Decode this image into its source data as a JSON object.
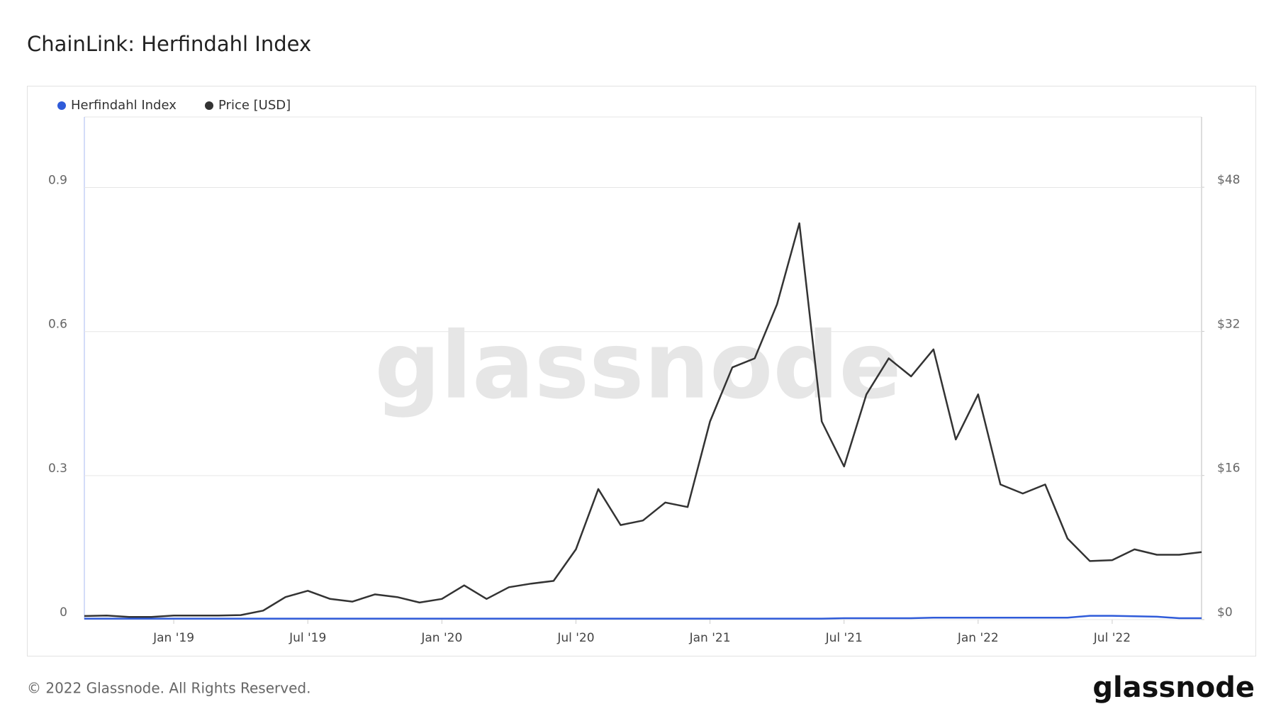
{
  "chart_data": {
    "type": "line",
    "title": "ChainLink: Herfindahl Index",
    "x": [
      "2018-09",
      "2018-10",
      "2018-11",
      "2018-12",
      "2019-01",
      "2019-02",
      "2019-03",
      "2019-04",
      "2019-05",
      "2019-06",
      "2019-07",
      "2019-08",
      "2019-09",
      "2019-10",
      "2019-11",
      "2019-12",
      "2020-01",
      "2020-02",
      "2020-03",
      "2020-04",
      "2020-05",
      "2020-06",
      "2020-07",
      "2020-08",
      "2020-09",
      "2020-10",
      "2020-11",
      "2020-12",
      "2021-01",
      "2021-02",
      "2021-03",
      "2021-04",
      "2021-05",
      "2021-06",
      "2021-07",
      "2021-08",
      "2021-09",
      "2021-10",
      "2021-11",
      "2021-12",
      "2022-01",
      "2022-02",
      "2022-03",
      "2022-04",
      "2022-05",
      "2022-06",
      "2022-07",
      "2022-08",
      "2022-09",
      "2022-10",
      "2022-11"
    ],
    "series": [
      {
        "name": "Herfindahl Index",
        "color": "#2f5bd9",
        "axis": "y",
        "values": [
          0.002,
          0.002,
          0.002,
          0.002,
          0.002,
          0.002,
          0.002,
          0.002,
          0.002,
          0.002,
          0.002,
          0.002,
          0.002,
          0.002,
          0.002,
          0.002,
          0.002,
          0.002,
          0.002,
          0.002,
          0.002,
          0.002,
          0.002,
          0.002,
          0.002,
          0.002,
          0.002,
          0.002,
          0.002,
          0.002,
          0.002,
          0.002,
          0.002,
          0.002,
          0.003,
          0.003,
          0.003,
          0.003,
          0.004,
          0.004,
          0.004,
          0.004,
          0.004,
          0.004,
          0.004,
          0.008,
          0.008,
          0.007,
          0.006,
          0.003,
          0.003
        ]
      },
      {
        "name": "Price [USD]",
        "color": "#333333",
        "axis": "y2",
        "values": [
          0.4,
          0.45,
          0.3,
          0.3,
          0.45,
          0.45,
          0.45,
          0.5,
          1.0,
          2.5,
          3.2,
          2.3,
          2.0,
          2.8,
          2.5,
          1.9,
          2.3,
          3.8,
          2.3,
          3.6,
          4.0,
          4.3,
          7.8,
          14.5,
          10.5,
          11,
          13,
          12.5,
          22,
          28,
          29,
          35,
          44,
          22,
          17,
          25,
          29,
          27,
          30,
          20,
          25,
          15,
          14,
          15,
          9,
          6.5,
          6.6,
          7.8,
          7.2,
          7.2,
          7.5
        ]
      }
    ],
    "xlim": [
      "2018-09",
      "2022-11"
    ],
    "xticks": [
      {
        "value": "2019-01",
        "label": "Jan '19"
      },
      {
        "value": "2019-07",
        "label": "Jul '19"
      },
      {
        "value": "2020-01",
        "label": "Jan '20"
      },
      {
        "value": "2020-07",
        "label": "Jul '20"
      },
      {
        "value": "2021-01",
        "label": "Jan '21"
      },
      {
        "value": "2021-07",
        "label": "Jul '21"
      },
      {
        "value": "2022-01",
        "label": "Jan '22"
      },
      {
        "value": "2022-07",
        "label": "Jul '22"
      }
    ],
    "ylim": [
      0,
      1.047
    ],
    "yticks": [
      0,
      0.3,
      0.6,
      0.9
    ],
    "y2lim": [
      0,
      55.8
    ],
    "y2ticks": [
      {
        "value": 0,
        "label": "$0"
      },
      {
        "value": 16,
        "label": "$16"
      },
      {
        "value": 32,
        "label": "$32"
      },
      {
        "value": 48,
        "label": "$48"
      }
    ],
    "grid": true,
    "watermark": "glassnode",
    "footer": "© 2022 Glassnode. All Rights Reserved.",
    "logo": "glassnode"
  }
}
